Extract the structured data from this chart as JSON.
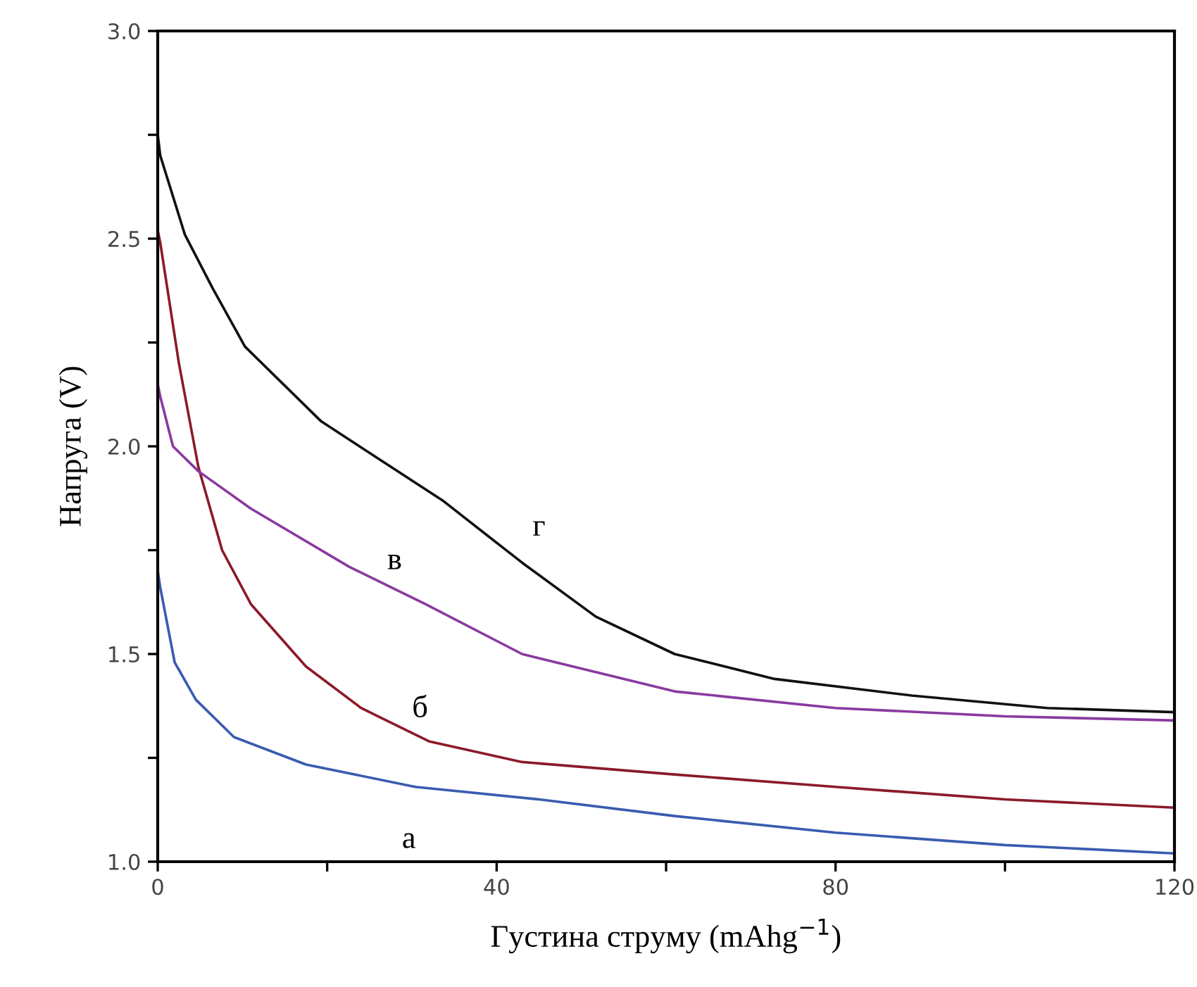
{
  "chart_data": {
    "type": "line",
    "xlabel": "Густина струму (mAhg$^{−1}$)",
    "ylabel": "Напруга (V)",
    "xlim": [
      0,
      120
    ],
    "ylim": [
      1.0,
      3.0
    ],
    "xticks": [
      0,
      {
        "value": 20,
        "label": null
      },
      40,
      {
        "value": 60,
        "label": null
      },
      80,
      {
        "value": 100,
        "label": null
      },
      120
    ],
    "yticks": [
      {
        "value": 1.0,
        "label": "1.0"
      },
      {
        "value": 1.25,
        "label": null
      },
      1.5,
      {
        "value": 1.75,
        "label": null
      },
      {
        "value": 2.0,
        "label": "2.0"
      },
      {
        "value": 2.25,
        "label": null
      },
      2.5,
      {
        "value": 2.75,
        "label": null
      },
      {
        "value": 3.0,
        "label": "3.0"
      }
    ],
    "grid": false,
    "legend": false,
    "marker": "none",
    "line_style": "solid",
    "series": [
      {
        "name": "а",
        "color": "#3a5bb0",
        "x": [
          0,
          0.3,
          2,
          4.5,
          9,
          17.5,
          30.4,
          45,
          61,
          80,
          100,
          120
        ],
        "values": [
          1.7,
          1.66,
          1.48,
          1.39,
          1.3,
          1.234,
          1.18,
          1.15,
          1.11,
          1.07,
          1.04,
          1.02
        ]
      },
      {
        "name": "б",
        "color": "#8b1a2a",
        "x": [
          0,
          0.3,
          2.5,
          4.8,
          7.6,
          11,
          17.5,
          24,
          32,
          43,
          61,
          80,
          100,
          120
        ],
        "values": [
          2.52,
          2.49,
          2.2,
          1.95,
          1.75,
          1.62,
          1.47,
          1.37,
          1.29,
          1.24,
          1.21,
          1.18,
          1.15,
          1.13
        ]
      },
      {
        "name": "в",
        "color": "#8a3aa0",
        "x": [
          0,
          0.3,
          1.8,
          4.8,
          11,
          22.6,
          31.6,
          43,
          61,
          80,
          100,
          120
        ],
        "values": [
          2.15,
          2.12,
          2.0,
          1.94,
          1.85,
          1.71,
          1.62,
          1.5,
          1.41,
          1.37,
          1.35,
          1.34
        ]
      },
      {
        "name": "г",
        "color": "#111111",
        "x": [
          0,
          0.3,
          3.2,
          6.5,
          10.3,
          19.3,
          33.6,
          43,
          51.7,
          61,
          72.8,
          89,
          105,
          120
        ],
        "values": [
          2.75,
          2.7,
          2.51,
          2.38,
          2.24,
          2.06,
          1.87,
          1.72,
          1.59,
          1.5,
          1.44,
          1.4,
          1.37,
          1.36
        ]
      }
    ]
  }
}
